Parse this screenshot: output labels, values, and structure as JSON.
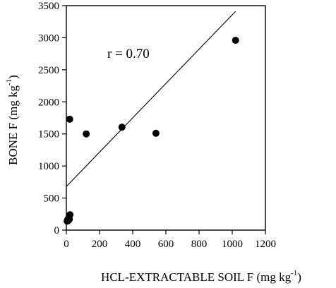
{
  "chart_data": {
    "type": "scatter",
    "xlabel": "HCL-EXTRACTABLE SOIL F (mg kg",
    "xlabel_sup": "-1",
    "xlabel_close": ")",
    "ylabel": "BONE F (mg kg",
    "ylabel_sup": "-1",
    "ylabel_close": ")",
    "annotation": "r = 0.70",
    "xlim": [
      0,
      1200
    ],
    "ylim": [
      0,
      3500
    ],
    "xticks": [
      0,
      200,
      400,
      600,
      800,
      1000,
      1200
    ],
    "yticks": [
      0,
      500,
      1000,
      1500,
      2000,
      2500,
      3000,
      3500
    ],
    "grid": false,
    "points": [
      {
        "x": 5,
        "y": 140
      },
      {
        "x": 8,
        "y": 165
      },
      {
        "x": 12,
        "y": 150
      },
      {
        "x": 15,
        "y": 190
      },
      {
        "x": 18,
        "y": 170
      },
      {
        "x": 22,
        "y": 240
      },
      {
        "x": 20,
        "y": 1730
      },
      {
        "x": 120,
        "y": 1500
      },
      {
        "x": 335,
        "y": 1605
      },
      {
        "x": 540,
        "y": 1510
      },
      {
        "x": 1020,
        "y": 2960
      }
    ],
    "regression_line": {
      "x": [
        0,
        1020
      ],
      "y": [
        680,
        3410
      ]
    }
  }
}
